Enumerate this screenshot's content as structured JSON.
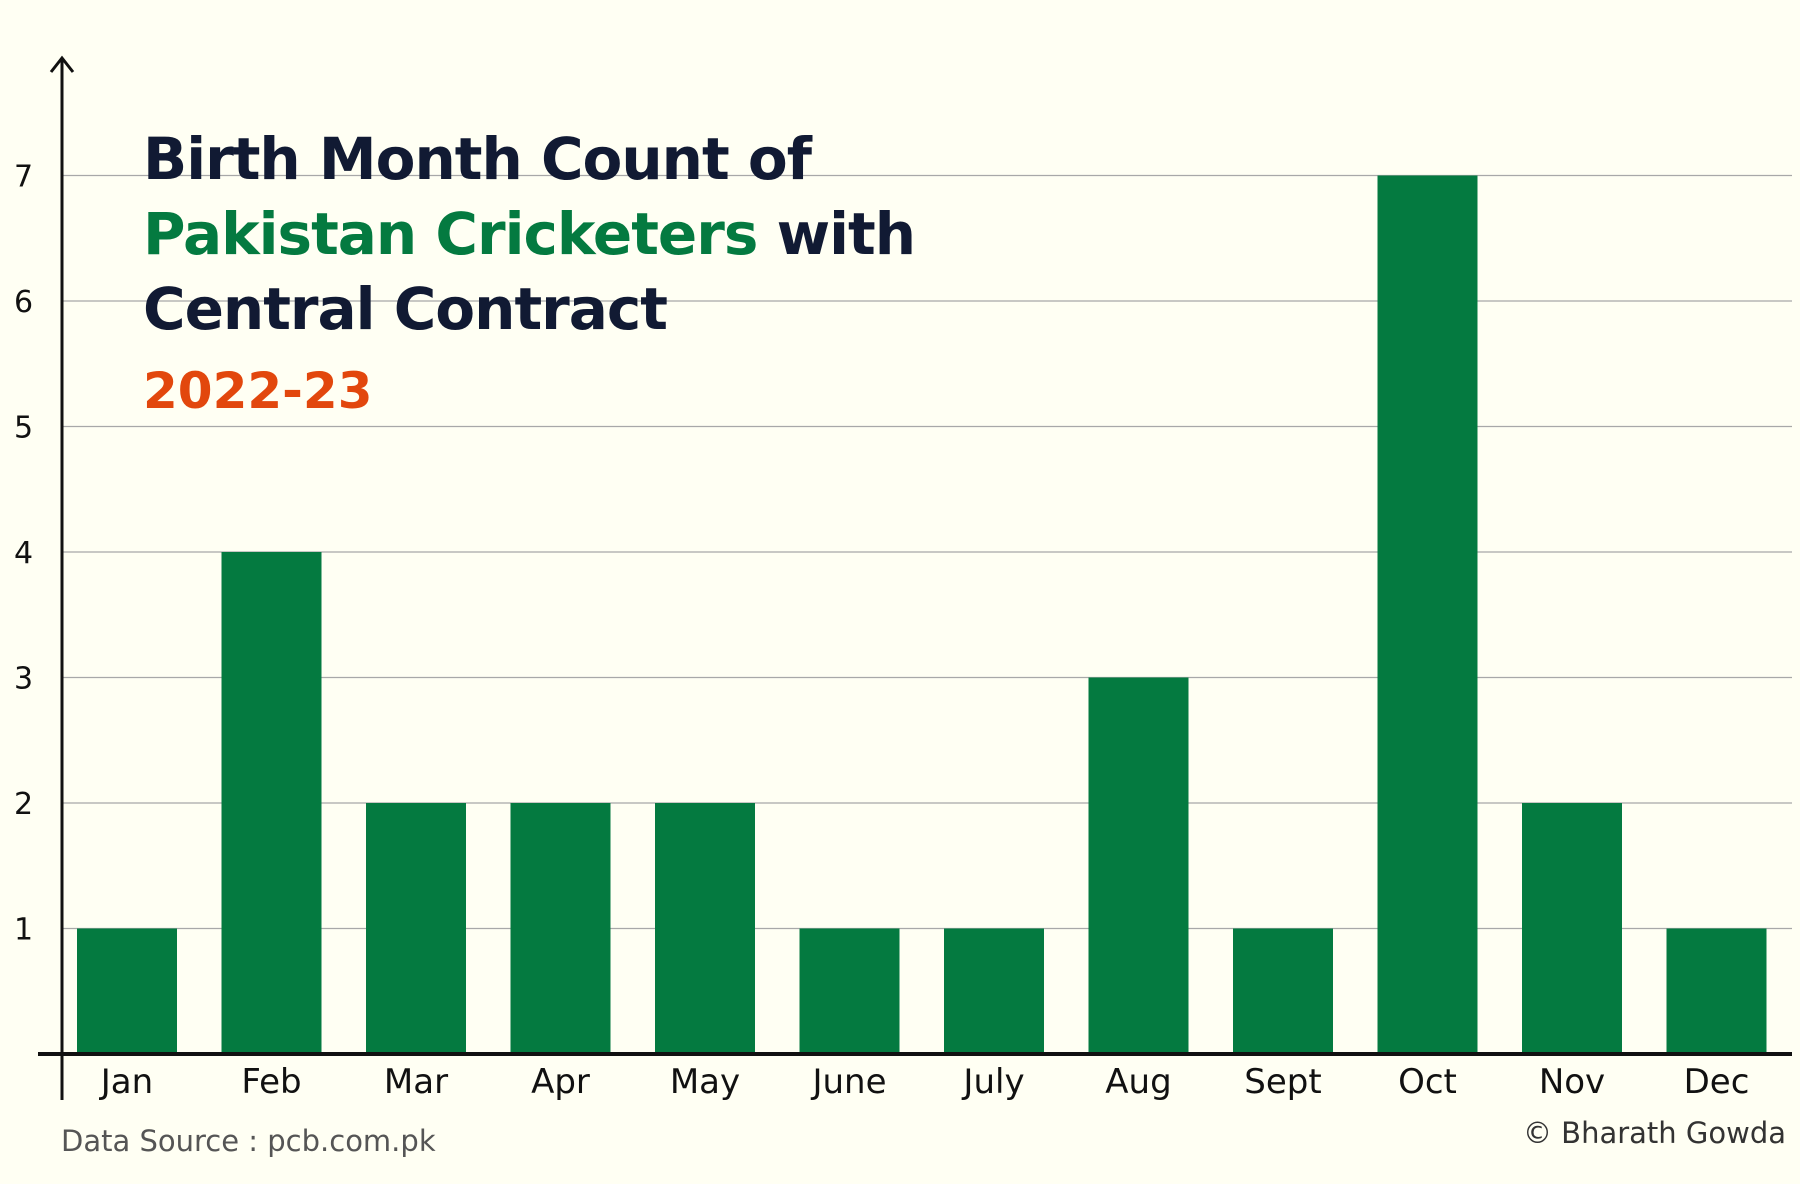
{
  "title": {
    "line1": "Birth Month Count of",
    "line2_highlight": "Pakistan Cricketers",
    "line2_rest": " with",
    "line3": "Central Contract"
  },
  "subtitle": "2022-23",
  "source": "Data Source : pcb.com.pk",
  "credit": "© Bharath Gowda",
  "colors": {
    "background": "#fffff3",
    "bar": "#047a40",
    "title": "#111a33",
    "highlight": "#047a40",
    "subtitle": "#e2470d",
    "gridline": "#a8a8a8"
  },
  "chart_data": {
    "type": "bar",
    "categories": [
      "Jan",
      "Feb",
      "Mar",
      "Apr",
      "May",
      "June",
      "July",
      "Aug",
      "Sept",
      "Oct",
      "Nov",
      "Dec"
    ],
    "values": [
      1,
      4,
      2,
      2,
      2,
      1,
      1,
      3,
      1,
      7,
      2,
      1
    ],
    "yticks": [
      1,
      2,
      3,
      4,
      5,
      6,
      7
    ],
    "ylim": [
      0,
      7.8
    ],
    "grid": true,
    "title": "Birth Month Count of Pakistan Cricketers with Central Contract",
    "xlabel": "",
    "ylabel": ""
  }
}
